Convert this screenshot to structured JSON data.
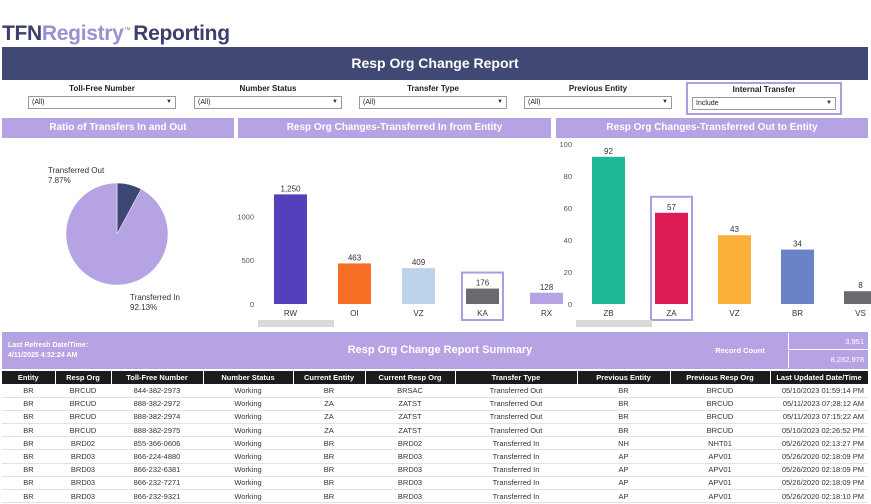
{
  "logo": {
    "part1": "TFN",
    "part2": "Registry",
    "tm": "™",
    "part3": "Reporting"
  },
  "title": "Resp Org Change Report",
  "filters": [
    {
      "label": "Toll-Free Number",
      "value": "(All)"
    },
    {
      "label": "Number Status",
      "value": "(All)"
    },
    {
      "label": "Transfer Type",
      "value": "(All)"
    },
    {
      "label": "Previous Entity",
      "value": "(All)"
    },
    {
      "label": "Internal Transfer",
      "value": "Include"
    }
  ],
  "panels": {
    "ratio": "Ratio of Transfers In and Out",
    "in": "Resp Org Changes-Transferred In from Entity",
    "out": "Resp Org Changes-Transferred Out to Entity"
  },
  "chart_data": [
    {
      "type": "pie",
      "title": "Ratio of Transfers In and Out",
      "slices": [
        {
          "label": "Transferred Out",
          "value": 7.87,
          "display": "7.87%",
          "color": "#3d4773"
        },
        {
          "label": "Transferred In",
          "value": 92.13,
          "display": "92.13%",
          "color": "#b6a3e3"
        }
      ]
    },
    {
      "type": "bar",
      "title": "Resp Org Changes-Transferred In from Entity",
      "categories": [
        "RW",
        "OI",
        "VZ",
        "KA",
        "RX"
      ],
      "values": [
        1250,
        463,
        409,
        176,
        128
      ],
      "labels": [
        "1,250",
        "463",
        "409",
        "176",
        "128"
      ],
      "colors": [
        "#5540bc",
        "#f76f25",
        "#bcd3ea",
        "#6a6a6e",
        "#b6a3e3"
      ],
      "highlight": "KA",
      "yticks": [
        0,
        500,
        1000
      ],
      "ylim": [
        0,
        1300
      ]
    },
    {
      "type": "bar",
      "title": "Resp Org Changes-Transferred Out to Entity",
      "categories": [
        "ZB",
        "ZA",
        "VZ",
        "BR",
        "VS"
      ],
      "values": [
        92,
        57,
        43,
        34,
        8
      ],
      "labels": [
        "92",
        "57",
        "43",
        "34",
        "8"
      ],
      "colors": [
        "#1db996",
        "#dc1b54",
        "#fbb03b",
        "#6b83c6",
        "#6a6a6e"
      ],
      "highlight": "ZA",
      "yticks": [
        0,
        20,
        40,
        60,
        80,
        100
      ],
      "ylim": [
        0,
        100
      ]
    }
  ],
  "summary": {
    "refresh_label": "Last Refresh Date/Time:",
    "refresh_value": "4/11/2025 4:32:24 AM",
    "title": "Resp Org Change Report Summary",
    "record_count_label": "Record Count",
    "count1": "3,951",
    "count2": "8,282,978"
  },
  "table": {
    "columns": [
      "Entity",
      "Resp Org",
      "Toll-Free Number",
      "Number Status",
      "Current Entity",
      "Current Resp Org",
      "Transfer Type",
      "Previous Entity",
      "Previous Resp Org",
      "Last Updated Date/Time"
    ],
    "rows": [
      [
        "BR",
        "BRCUD",
        "844-382-2973",
        "Working",
        "BR",
        "BRSAC",
        "Transferred Out",
        "BR",
        "BRCUD",
        "05/10/2023 01:59:14 PM"
      ],
      [
        "BR",
        "BRCUD",
        "888-382-2972",
        "Working",
        "ZA",
        "ZATST",
        "Transferred Out",
        "BR",
        "BRCUD",
        "05/11/2023 07:28:12 AM"
      ],
      [
        "BR",
        "BRCUD",
        "888-382-2974",
        "Working",
        "ZA",
        "ZATST",
        "Transferred Out",
        "BR",
        "BRCUD",
        "05/11/2023 07:15:22 AM"
      ],
      [
        "BR",
        "BRCUD",
        "888-382-2975",
        "Working",
        "ZA",
        "ZATST",
        "Transferred Out",
        "BR",
        "BRCUD",
        "05/10/2023 02:26:52 PM"
      ],
      [
        "BR",
        "BRD02",
        "855-366-0606",
        "Working",
        "BR",
        "BRD02",
        "Transferred In",
        "NH",
        "NHT01",
        "05/26/2020 02:13:27 PM"
      ],
      [
        "BR",
        "BRD03",
        "866-224-4880",
        "Working",
        "BR",
        "BRD03",
        "Transferred In",
        "AP",
        "APV01",
        "05/26/2020 02:18:09 PM"
      ],
      [
        "BR",
        "BRD03",
        "866-232-6381",
        "Working",
        "BR",
        "BRD03",
        "Transferred In",
        "AP",
        "APV01",
        "05/26/2020 02:18:09 PM"
      ],
      [
        "BR",
        "BRD03",
        "866-232-7271",
        "Working",
        "BR",
        "BRD03",
        "Transferred In",
        "AP",
        "APV01",
        "05/26/2020 02:18:09 PM"
      ],
      [
        "BR",
        "BRD03",
        "866-232-9321",
        "Working",
        "BR",
        "BRD03",
        "Transferred In",
        "AP",
        "APV01",
        "05/26/2020 02:18:10 PM"
      ]
    ]
  }
}
